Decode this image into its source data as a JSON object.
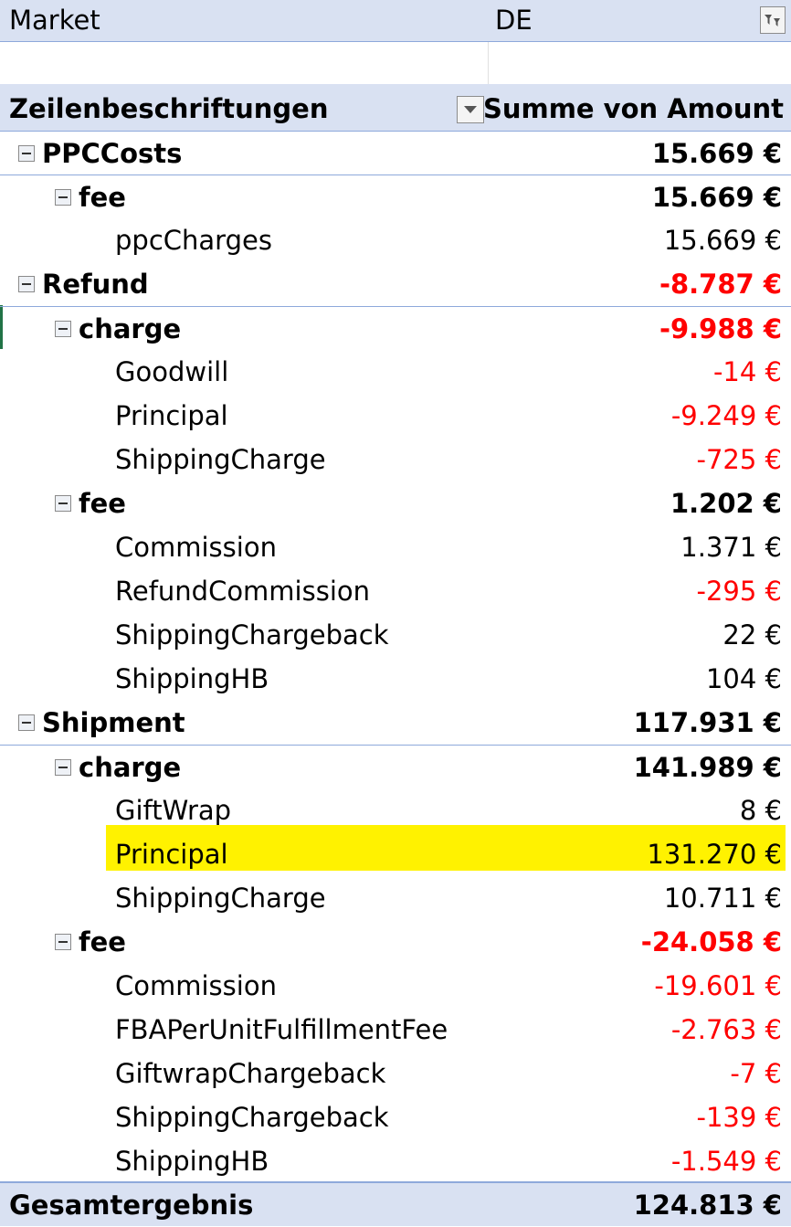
{
  "filter": {
    "field": "Market",
    "value": "DE"
  },
  "pivot_header": {
    "row_labels": "Zeilenbeschriftungen",
    "sum_label": "Summe von Amount"
  },
  "rows": [
    {
      "label": "PPCCosts",
      "value": "15.669 €"
    },
    {
      "label": "fee",
      "value": "15.669 €"
    },
    {
      "label": "ppcCharges",
      "value": "15.669 €"
    },
    {
      "label": "Refund",
      "value": "-8.787 €"
    },
    {
      "label": "charge",
      "value": "-9.988 €"
    },
    {
      "label": "Goodwill",
      "value": "-14 €"
    },
    {
      "label": "Principal",
      "value": "-9.249 €"
    },
    {
      "label": "ShippingCharge",
      "value": "-725 €"
    },
    {
      "label": "fee",
      "value": "1.202 €"
    },
    {
      "label": "Commission",
      "value": "1.371 €"
    },
    {
      "label": "RefundCommission",
      "value": "-295 €"
    },
    {
      "label": "ShippingChargeback",
      "value": "22 €"
    },
    {
      "label": "ShippingHB",
      "value": "104 €"
    },
    {
      "label": "Shipment",
      "value": "117.931 €"
    },
    {
      "label": "charge",
      "value": "141.989 €"
    },
    {
      "label": "GiftWrap",
      "value": "8 €"
    },
    {
      "label": "Principal",
      "value": "131.270 €"
    },
    {
      "label": "ShippingCharge",
      "value": "10.711 €"
    },
    {
      "label": "fee",
      "value": "-24.058 €"
    },
    {
      "label": "Commission",
      "value": "-19.601 €"
    },
    {
      "label": "FBAPerUnitFulfillmentFee",
      "value": "-2.763 €"
    },
    {
      "label": "GiftwrapChargeback",
      "value": "-7 €"
    },
    {
      "label": "ShippingChargeback",
      "value": "-139 €"
    },
    {
      "label": "ShippingHB",
      "value": "-1.549 €"
    }
  ],
  "grand_total": {
    "label": "Gesamtergebnis",
    "value": "124.813 €"
  },
  "colors": {
    "header_bg": "#d9e1f2",
    "negative": "#ff0000",
    "highlight": "#fff200",
    "border": "#8ea9db"
  }
}
